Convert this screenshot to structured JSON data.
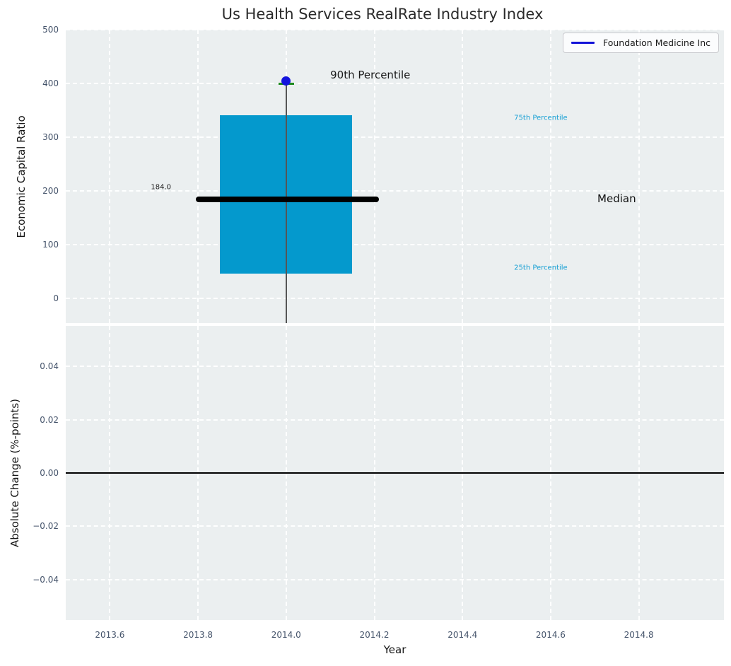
{
  "chart_data": {
    "type": "boxplot",
    "title": "Us Health Services RealRate Industry Index",
    "xlabel": "Year",
    "xlim": [
      2013.5,
      2014.993
    ],
    "xticks": [
      {
        "v": 2013.6,
        "label": "2013.6"
      },
      {
        "v": 2013.8,
        "label": "2013.8"
      },
      {
        "v": 2014.0,
        "label": "2014.0"
      },
      {
        "v": 2014.2,
        "label": "2014.2"
      },
      {
        "v": 2014.4,
        "label": "2014.4"
      },
      {
        "v": 2014.6,
        "label": "2014.6"
      },
      {
        "v": 2014.8,
        "label": "2014.8"
      }
    ],
    "legend": {
      "label": "Foundation Medicine Inc",
      "position": "upper right",
      "line_color": "#1313d8"
    },
    "grid": {
      "on": true,
      "style": "white dashed"
    },
    "colors": {
      "axes_bg": "#ebeff0",
      "grid": "#ffffff",
      "tick_label": "#44536a",
      "figure_bg": "#ffffff"
    },
    "top_panel": {
      "ylabel": "Economic Capital Ratio",
      "ylim": [
        -46,
        500
      ],
      "yticks": [
        {
          "v": 0,
          "label": "0"
        },
        {
          "v": 100,
          "label": "100"
        },
        {
          "v": 200,
          "label": "200"
        },
        {
          "v": 300,
          "label": "300"
        },
        {
          "v": 400,
          "label": "400"
        },
        {
          "v": 500,
          "label": "500"
        }
      ],
      "boxplot": {
        "x_center": 2014.0,
        "box_left": 2013.85,
        "box_right": 2014.15,
        "q1": 46,
        "median": 184.0,
        "q3": 341,
        "p90": 400,
        "whisker_low_clip": -46,
        "median_line_left": 2013.795,
        "median_line_right": 2014.21,
        "box_color": "#0499cd",
        "median_color": "#000000",
        "whisker_color": "#555555",
        "cap_color": "#1e8a1e"
      },
      "company_point": {
        "label": "Foundation Medicine Inc",
        "x": 2014.0,
        "y": 405,
        "color": "#1414dd"
      },
      "annotations": [
        {
          "id": "p90-label",
          "text": "90th Percentile",
          "x": 2014.1,
          "y": 416,
          "ha": "left",
          "size": 15,
          "color": "#1a1a1a"
        },
        {
          "id": "p75-label",
          "text": "75th Percentile",
          "x": 2014.517,
          "y": 336,
          "ha": "left",
          "size": 10,
          "color": "#18a0d4"
        },
        {
          "id": "median-label",
          "text": "Median",
          "x": 2014.706,
          "y": 186,
          "ha": "left",
          "size": 15,
          "color": "#111111"
        },
        {
          "id": "p25-label",
          "text": "25th Percentile",
          "x": 2014.517,
          "y": 56,
          "ha": "left",
          "size": 10,
          "color": "#18a0d4"
        },
        {
          "id": "median-value",
          "text": "184.0",
          "x": 2013.739,
          "y": 206,
          "ha": "right",
          "size": 10,
          "color": "#1a1a1a"
        }
      ]
    },
    "bottom_panel": {
      "ylabel": "Absolute Change (%-points)",
      "ylim": [
        -0.0551,
        0.0551
      ],
      "yticks": [
        {
          "v": 0.04,
          "label": "0.04"
        },
        {
          "v": 0.02,
          "label": "0.02"
        },
        {
          "v": 0.0,
          "label": "0.00"
        },
        {
          "v": -0.02,
          "label": "−0.02"
        },
        {
          "v": -0.04,
          "label": "−0.04"
        }
      ],
      "zero_line": {
        "y": 0.0,
        "color": "#000000"
      }
    }
  }
}
